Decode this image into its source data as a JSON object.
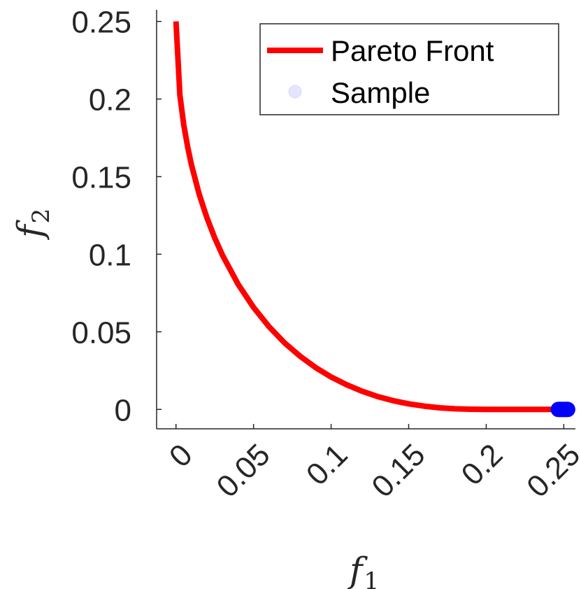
{
  "chart_data": {
    "type": "line",
    "title": "",
    "xlabel": "f",
    "xlabel_sub": "1",
    "ylabel": "f",
    "ylabel_sub": "2",
    "xlim": [
      -0.0125,
      0.2575
    ],
    "ylim": [
      -0.0125,
      0.2575
    ],
    "xticks": [
      0,
      0.05,
      0.1,
      0.15,
      0.2,
      0.25
    ],
    "xtick_labels": [
      "0",
      "0.05",
      "0.1",
      "0.15",
      "0.2",
      "0.25"
    ],
    "yticks": [
      0,
      0.05,
      0.1,
      0.15,
      0.2,
      0.25
    ],
    "ytick_labels": [
      "0",
      "0.05",
      "0.1",
      "0.15",
      "0.2",
      "0.25"
    ],
    "grid": false,
    "legend": {
      "placement": "top-right",
      "entries": [
        "Pareto Front",
        "Sample"
      ]
    },
    "series": [
      {
        "name": "Pareto Front",
        "kind": "line",
        "color": "#ff0000",
        "x": [
          0.0,
          0.0025,
          0.005,
          0.0075,
          0.01,
          0.015,
          0.02,
          0.025,
          0.03,
          0.04,
          0.05,
          0.06,
          0.07,
          0.08,
          0.09,
          0.1,
          0.11,
          0.12,
          0.13,
          0.14,
          0.15,
          0.16,
          0.17,
          0.18,
          0.19,
          0.2,
          0.21,
          0.22,
          0.23,
          0.24,
          0.25
        ],
        "y": [
          0.25,
          0.2025,
          0.1834,
          0.1692,
          0.1575,
          0.1385,
          0.1233,
          0.1104,
          0.0993,
          0.0807,
          0.0657,
          0.0533,
          0.0429,
          0.0343,
          0.027,
          0.0209,
          0.0159,
          0.0117,
          0.0083,
          0.0056,
          0.0036,
          0.0021,
          0.001,
          0.0004,
          0.0001,
          0.0,
          0.0,
          0.0,
          0.0,
          0.0,
          0.0
        ]
      },
      {
        "name": "Sample",
        "kind": "scatter",
        "color": "#0000ff",
        "x": [
          0.2465,
          0.2475,
          0.2485,
          0.2495,
          0.2505,
          0.2515,
          0.2525
        ],
        "y": [
          0.0,
          0.0,
          0.0,
          0.0,
          0.0,
          0.0,
          0.0
        ]
      }
    ]
  }
}
